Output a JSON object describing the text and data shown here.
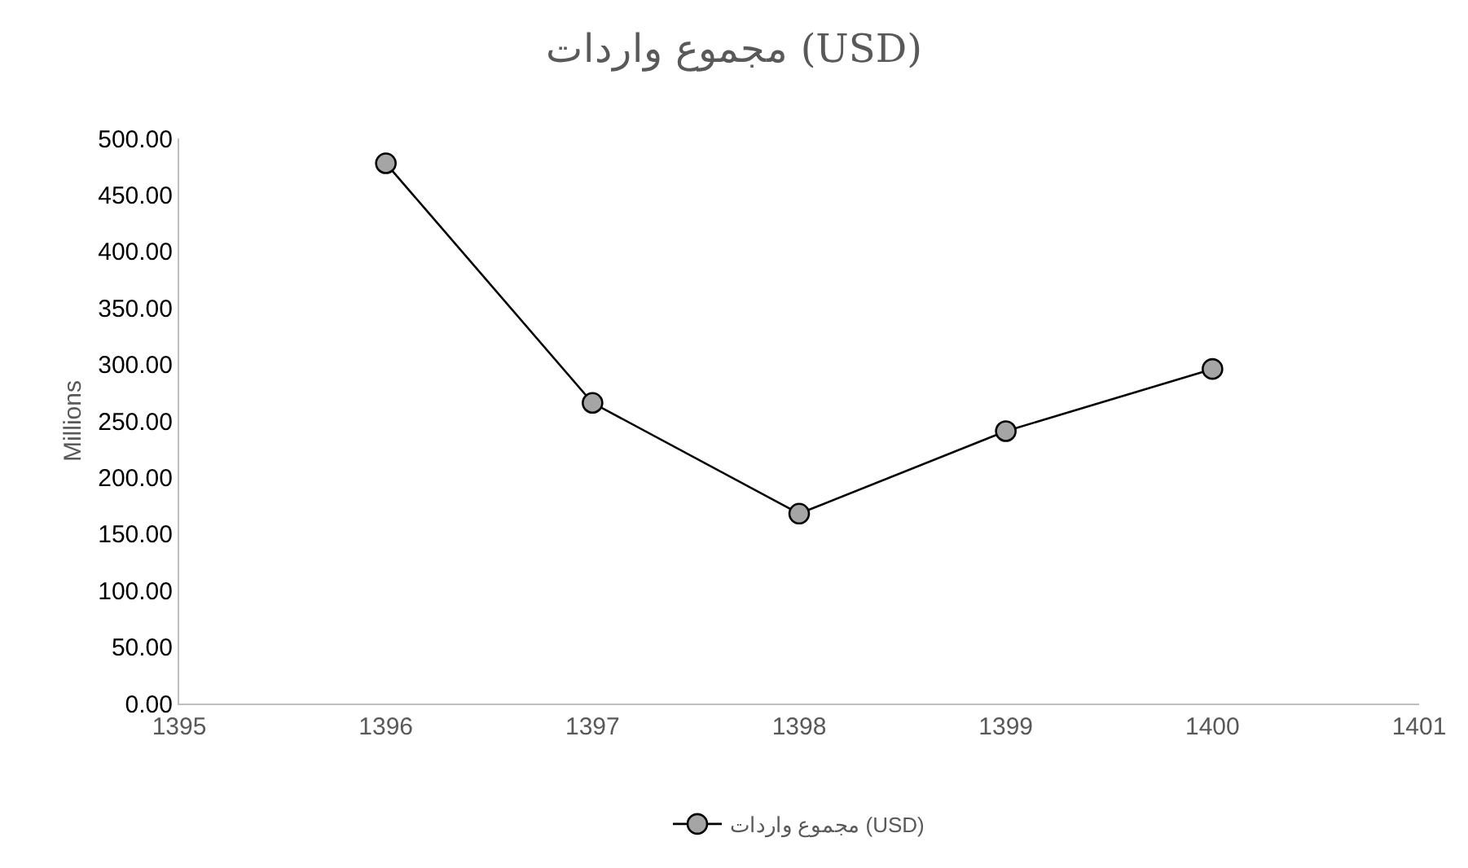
{
  "chart_data": {
    "type": "line",
    "title": "مجموع واردات (USD)",
    "ylabel": "Millions",
    "x": [
      1396,
      1397,
      1398,
      1399,
      1400
    ],
    "series": [
      {
        "name": "مجموع واردات (USD)",
        "color": "#000000",
        "values": [
          478,
          266,
          168,
          241,
          296
        ]
      }
    ],
    "xlim": [
      1395,
      1401
    ],
    "xticks": [
      1395,
      1396,
      1397,
      1398,
      1399,
      1400,
      1401
    ],
    "ylim": [
      0,
      500
    ],
    "yticks": [
      {
        "value": 0,
        "label": "0.00"
      },
      {
        "value": 50,
        "label": "50.00"
      },
      {
        "value": 100,
        "label": "100.00"
      },
      {
        "value": 150,
        "label": "150.00"
      },
      {
        "value": 200,
        "label": "200.00"
      },
      {
        "value": 250,
        "label": "250.00"
      },
      {
        "value": 300,
        "label": "300.00"
      },
      {
        "value": 350,
        "label": "350.00"
      },
      {
        "value": 400,
        "label": "400.00"
      },
      {
        "value": 450,
        "label": "450.00"
      },
      {
        "value": 500,
        "label": "500.00"
      }
    ],
    "legend": "bottom",
    "marker": "circle",
    "line_style": "solid"
  }
}
